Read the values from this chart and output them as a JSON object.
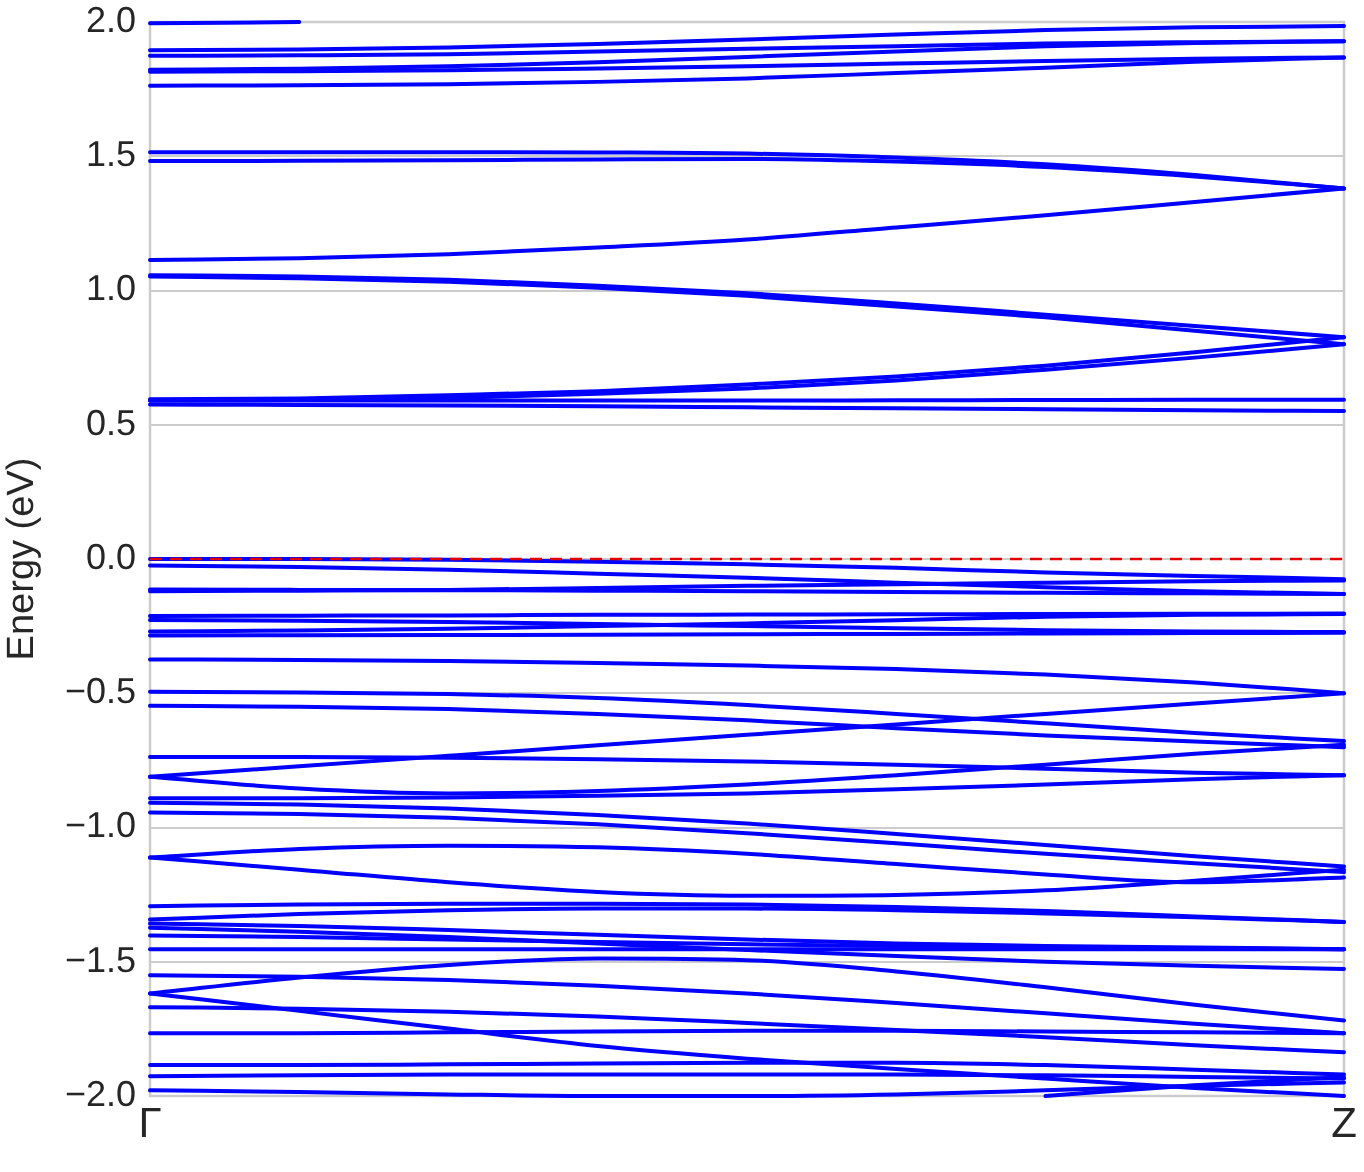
{
  "chart_data": {
    "type": "line",
    "ylabel": "Energy (eV)",
    "categories": [
      "Γ",
      null,
      null,
      null,
      null,
      null,
      null,
      null,
      "Z"
    ],
    "ylim": [
      -2,
      2
    ],
    "yticks": [
      {
        "value": -2,
        "label": "−2.0"
      },
      {
        "value": -1.5,
        "label": "−1.5"
      },
      {
        "value": -1,
        "label": "−1.0"
      },
      {
        "value": -0.5,
        "label": "−0.5"
      },
      {
        "value": 0,
        "label": "0.0"
      },
      {
        "value": 0.5,
        "label": "0.5"
      },
      {
        "value": 1,
        "label": "1.0"
      },
      {
        "value": 1.5,
        "label": "1.5"
      },
      {
        "value": 2,
        "label": "2.0"
      }
    ],
    "grid": "y",
    "marker": "none",
    "ref_lines": [
      {
        "axis": "y",
        "value": 0,
        "color": "#e00000",
        "line_style": "dashed"
      }
    ],
    "series": [
      {
        "color": "#0000ff",
        "values": [
          1.995,
          2.0,
          null,
          null,
          null,
          null,
          null,
          null,
          null
        ]
      },
      {
        "color": "#0000ff",
        "values": [
          1.895,
          1.898,
          1.905,
          1.918,
          1.935,
          1.953,
          1.97,
          1.98,
          1.985
        ]
      },
      {
        "color": "#0000ff",
        "values": [
          1.874,
          1.876,
          1.88,
          1.89,
          1.9,
          1.91,
          1.92,
          1.925,
          1.928
        ]
      },
      {
        "color": "#0000ff",
        "values": [
          1.822,
          1.826,
          1.835,
          1.85,
          1.87,
          1.89,
          1.91,
          1.922,
          1.928
        ]
      },
      {
        "color": "#0000ff",
        "values": [
          1.815,
          1.817,
          1.82,
          1.827,
          1.835,
          1.845,
          1.855,
          1.863,
          1.868
        ]
      },
      {
        "color": "#0000ff",
        "values": [
          1.763,
          1.764,
          1.768,
          1.777,
          1.79,
          1.81,
          1.83,
          1.852,
          1.868
        ]
      },
      {
        "color": "#0000ff",
        "values": [
          1.515,
          1.515,
          1.515,
          1.514,
          1.51,
          1.495,
          1.47,
          1.43,
          1.38
        ]
      },
      {
        "color": "#0000ff",
        "values": [
          1.482,
          1.483,
          1.485,
          1.488,
          1.49,
          1.48,
          1.46,
          1.425,
          1.38
        ]
      },
      {
        "color": "#0000ff",
        "values": [
          1.114,
          1.12,
          1.135,
          1.16,
          1.19,
          1.235,
          1.28,
          1.33,
          1.38
        ]
      },
      {
        "color": "#0000ff",
        "values": [
          1.057,
          1.052,
          1.04,
          1.018,
          0.99,
          0.952,
          0.91,
          0.868,
          0.826
        ]
      },
      {
        "color": "#0000ff",
        "values": [
          1.052,
          1.046,
          1.033,
          1.01,
          0.98,
          0.94,
          0.9,
          0.85,
          0.8
        ]
      },
      {
        "color": "#0000ff",
        "values": [
          0.595,
          0.598,
          0.61,
          0.625,
          0.65,
          0.68,
          0.72,
          0.77,
          0.826
        ]
      },
      {
        "color": "#0000ff",
        "values": [
          0.59,
          0.592,
          0.6,
          0.615,
          0.635,
          0.665,
          0.705,
          0.75,
          0.8
        ]
      },
      {
        "color": "#0000ff",
        "values": [
          0.59,
          0.59,
          0.59,
          0.59,
          0.59,
          0.591,
          0.592,
          0.593,
          0.593
        ]
      },
      {
        "color": "#0000ff",
        "values": [
          0.575,
          0.574,
          0.572,
          0.569,
          0.565,
          0.561,
          0.558,
          0.554,
          0.551
        ]
      },
      {
        "color": "#0000ff",
        "values": [
          0,
          0,
          -0.003,
          -0.01,
          -0.02,
          -0.033,
          -0.05,
          -0.063,
          -0.075
        ]
      },
      {
        "color": "#0000ff",
        "values": [
          -0.024,
          -0.03,
          -0.04,
          -0.055,
          -0.07,
          -0.088,
          -0.105,
          -0.12,
          -0.13
        ]
      },
      {
        "color": "#0000ff",
        "values": [
          -0.114,
          -0.115,
          -0.116,
          -0.118,
          -0.12,
          -0.123,
          -0.126,
          -0.128,
          -0.13
        ]
      },
      {
        "color": "#0000ff",
        "values": [
          -0.12,
          -0.118,
          -0.115,
          -0.108,
          -0.1,
          -0.094,
          -0.088,
          -0.083,
          -0.08
        ]
      },
      {
        "color": "#0000ff",
        "values": [
          -0.212,
          -0.211,
          -0.21,
          -0.208,
          -0.207,
          -0.206,
          -0.205,
          -0.204,
          -0.203
        ]
      },
      {
        "color": "#0000ff",
        "values": [
          -0.227,
          -0.23,
          -0.235,
          -0.242,
          -0.25,
          -0.258,
          -0.265,
          -0.27,
          -0.272
        ]
      },
      {
        "color": "#0000ff",
        "values": [
          -0.27,
          -0.266,
          -0.26,
          -0.25,
          -0.24,
          -0.228,
          -0.215,
          -0.208,
          -0.205
        ]
      },
      {
        "color": "#0000ff",
        "values": [
          -0.285,
          -0.284,
          -0.283,
          -0.282,
          -0.28,
          -0.279,
          -0.277,
          -0.276,
          -0.275
        ]
      },
      {
        "color": "#0000ff",
        "values": [
          -0.374,
          -0.376,
          -0.38,
          -0.387,
          -0.397,
          -0.41,
          -0.43,
          -0.46,
          -0.5
        ]
      },
      {
        "color": "#0000ff",
        "values": [
          -0.494,
          -0.497,
          -0.503,
          -0.518,
          -0.544,
          -0.577,
          -0.612,
          -0.648,
          -0.678
        ]
      },
      {
        "color": "#0000ff",
        "values": [
          -0.547,
          -0.55,
          -0.559,
          -0.577,
          -0.601,
          -0.63,
          -0.657,
          -0.68,
          -0.701
        ]
      },
      {
        "color": "#0000ff",
        "values": [
          -0.811,
          -0.772,
          -0.733,
          -0.694,
          -0.655,
          -0.616,
          -0.577,
          -0.538,
          -0.5
        ]
      },
      {
        "color": "#0000ff",
        "values": [
          -0.737,
          -0.737,
          -0.74,
          -0.746,
          -0.754,
          -0.766,
          -0.781,
          -0.796,
          -0.805
        ]
      },
      {
        "color": "#0000ff",
        "values": [
          -0.811,
          -0.855,
          -0.873,
          -0.864,
          -0.84,
          -0.805,
          -0.766,
          -0.725,
          -0.692
        ]
      },
      {
        "color": "#0000ff",
        "values": [
          -0.891,
          -0.891,
          -0.888,
          -0.882,
          -0.873,
          -0.858,
          -0.84,
          -0.82,
          -0.805
        ]
      },
      {
        "color": "#0000ff",
        "values": [
          -0.908,
          -0.914,
          -0.929,
          -0.953,
          -0.985,
          -1.024,
          -1.065,
          -1.107,
          -1.145
        ]
      },
      {
        "color": "#0000ff",
        "values": [
          -0.944,
          -0.95,
          -0.964,
          -0.988,
          -1.021,
          -1.059,
          -1.098,
          -1.133,
          -1.166
        ]
      },
      {
        "color": "#0000ff",
        "values": [
          -1.112,
          -1.08,
          -1.068,
          -1.074,
          -1.098,
          -1.136,
          -1.175,
          -1.204,
          -1.186
        ]
      },
      {
        "color": "#0000ff",
        "values": [
          -1.112,
          -1.157,
          -1.204,
          -1.24,
          -1.254,
          -1.251,
          -1.234,
          -1.198,
          -1.157
        ]
      },
      {
        "color": "#0000ff",
        "values": [
          -1.293,
          -1.287,
          -1.284,
          -1.284,
          -1.287,
          -1.296,
          -1.311,
          -1.331,
          -1.352
        ]
      },
      {
        "color": "#0000ff",
        "values": [
          -1.343,
          -1.322,
          -1.308,
          -1.302,
          -1.302,
          -1.308,
          -1.32,
          -1.334,
          -1.352
        ]
      },
      {
        "color": "#0000ff",
        "values": [
          -1.358,
          -1.367,
          -1.382,
          -1.399,
          -1.417,
          -1.432,
          -1.441,
          -1.447,
          -1.453
        ]
      },
      {
        "color": "#0000ff",
        "values": [
          -1.373,
          -1.388,
          -1.408,
          -1.432,
          -1.456,
          -1.479,
          -1.5,
          -1.515,
          -1.527
        ]
      },
      {
        "color": "#0000ff",
        "values": [
          -1.402,
          -1.408,
          -1.417,
          -1.426,
          -1.435,
          -1.441,
          -1.447,
          -1.45,
          -1.453
        ]
      },
      {
        "color": "#0000ff",
        "values": [
          -1.453,
          -1.453,
          -1.453,
          -1.453,
          -1.453,
          -1.453,
          -1.453,
          -1.453,
          -1.453
        ]
      },
      {
        "color": "#0000ff",
        "values": [
          -1.618,
          -1.559,
          -1.512,
          -1.488,
          -1.494,
          -1.536,
          -1.595,
          -1.66,
          -1.719
        ]
      },
      {
        "color": "#0000ff",
        "values": [
          -1.55,
          -1.556,
          -1.568,
          -1.589,
          -1.618,
          -1.654,
          -1.692,
          -1.731,
          -1.766
        ]
      },
      {
        "color": "#0000ff",
        "values": [
          -1.618,
          -1.683,
          -1.749,
          -1.814,
          -1.861,
          -1.899,
          -1.935,
          -1.97,
          -2.0
        ]
      },
      {
        "color": "#0000ff",
        "values": [
          -1.669,
          -1.675,
          -1.686,
          -1.704,
          -1.728,
          -1.754,
          -1.781,
          -1.811,
          -1.837
        ]
      },
      {
        "color": "#0000ff",
        "values": [
          -1.766,
          -1.766,
          -1.763,
          -1.76,
          -1.757,
          -1.757,
          -1.76,
          -1.763,
          -1.766
        ]
      },
      {
        "color": "#0000ff",
        "values": [
          -1.885,
          -1.885,
          -1.882,
          -1.879,
          -1.876,
          -1.876,
          -1.885,
          -1.902,
          -1.92
        ]
      },
      {
        "color": "#0000ff",
        "values": [
          -1.926,
          -1.923,
          -1.92,
          -1.92,
          -1.92,
          -1.92,
          -1.923,
          -1.929,
          -1.935
        ]
      },
      {
        "color": "#0000ff",
        "values": [
          -1.979,
          -1.985,
          -1.994,
          -2.0,
          -2.0,
          -1.994,
          -1.979,
          -1.962,
          -1.95
        ]
      },
      {
        "color": "#0000ff",
        "values": [
          null,
          null,
          null,
          null,
          null,
          null,
          -2.0,
          -1.96,
          -1.93
        ]
      }
    ]
  }
}
